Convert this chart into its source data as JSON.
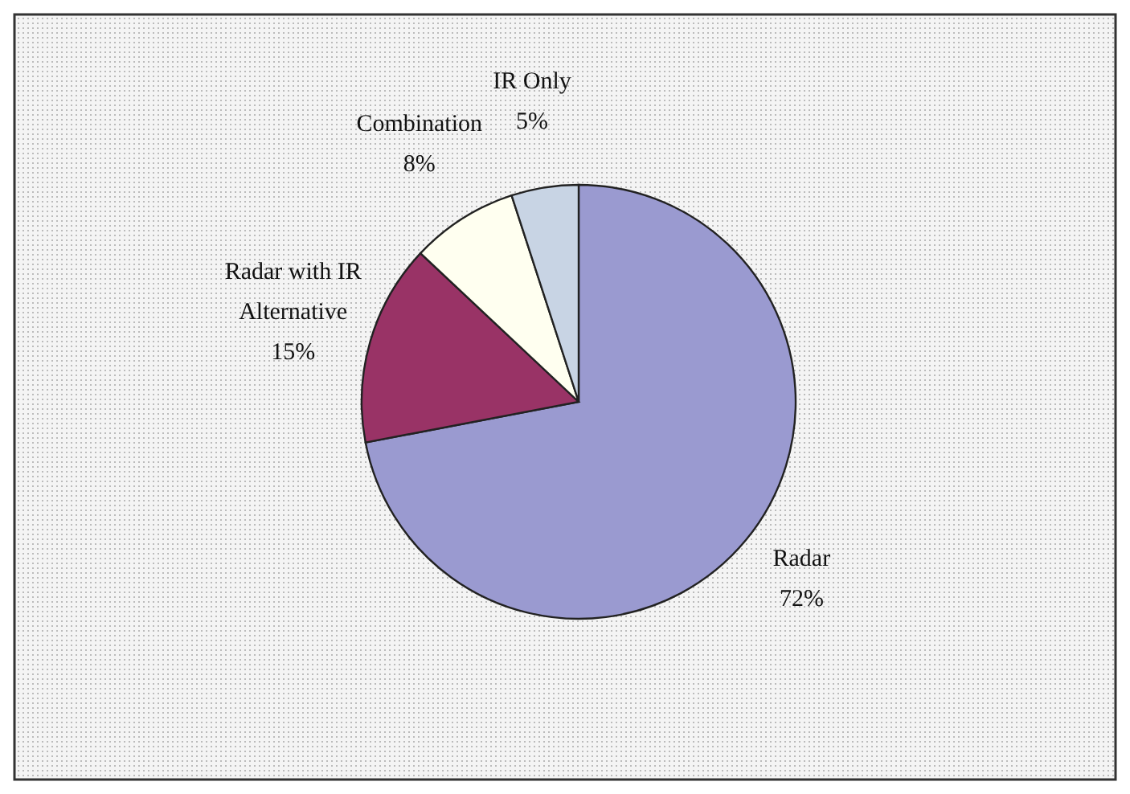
{
  "chart_data": {
    "type": "pie",
    "categories": [
      "Radar",
      "Radar with IR Alternative",
      "Combination",
      "IR Only"
    ],
    "values": [
      72,
      15,
      8,
      5
    ],
    "colors": [
      "#9a9ad0",
      "#993366",
      "#fffff0",
      "#c8d4e4"
    ],
    "value_labels": [
      "72%",
      "15%",
      "8%",
      "5%"
    ]
  }
}
